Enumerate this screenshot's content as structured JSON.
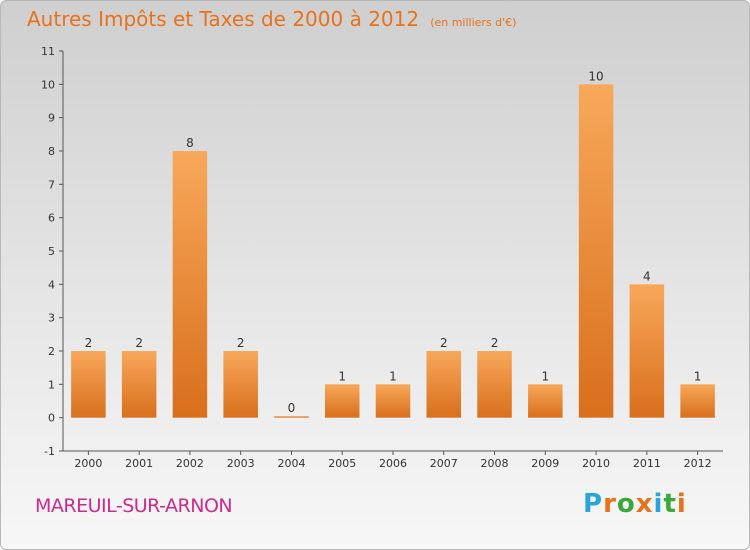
{
  "header": {
    "title": "Autres Impôts et Taxes de 2000 à 2012",
    "subtitle": "(en milliers d'€)"
  },
  "footer": {
    "place": "MAREUIL-SUR-ARNON",
    "brand": "Proxiti"
  },
  "colors": {
    "bar_light": "#f8a85a",
    "bar_dark": "#d86f1c",
    "title": "#e8721c",
    "place": "#cc2a8e",
    "brand_letters": [
      "#2aa5d8",
      "#e8721c",
      "#3aa83a",
      "#e8721c",
      "#2aa5d8",
      "#3aa83a",
      "#e8721c"
    ]
  },
  "chart_data": {
    "type": "bar",
    "title": "Autres Impôts et Taxes de 2000 à 2012",
    "subtitle": "(en milliers d'€)",
    "categories": [
      "2000",
      "2001",
      "2002",
      "2003",
      "2004",
      "2005",
      "2006",
      "2007",
      "2008",
      "2009",
      "2010",
      "2011",
      "2012"
    ],
    "values": [
      2,
      2,
      8,
      2,
      0,
      1,
      1,
      2,
      2,
      1,
      10,
      4,
      1
    ],
    "data_labels": [
      "2",
      "2",
      "8",
      "2",
      "0",
      "1",
      "1",
      "2",
      "2",
      "1",
      "10",
      "4",
      "1"
    ],
    "y_ticks": [
      -1,
      0,
      1,
      2,
      3,
      4,
      5,
      6,
      7,
      8,
      9,
      10,
      11
    ],
    "y_tick_labels": [
      "-1",
      "0",
      "1",
      "2",
      "3",
      "4",
      "5",
      "6",
      "7",
      "8",
      "9",
      "10",
      "11"
    ],
    "xlabel": "",
    "ylabel": "",
    "ylim": [
      -1,
      11
    ],
    "grid": false,
    "legend": "none"
  }
}
